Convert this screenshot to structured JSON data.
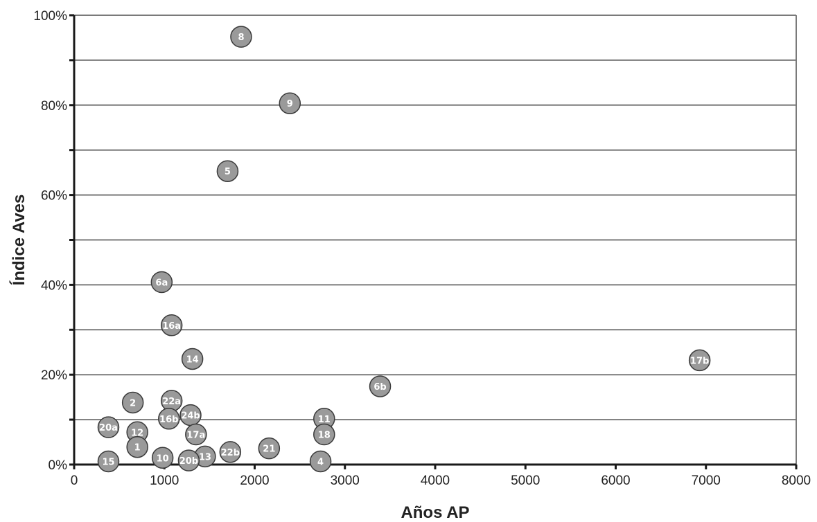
{
  "chart_data": {
    "type": "scatter",
    "title": "",
    "xlabel": "Años AP",
    "ylabel": "Índice Aves",
    "xlim": [
      0,
      8000
    ],
    "ylim": [
      0,
      100
    ],
    "x_ticks": [
      0,
      1000,
      2000,
      3000,
      4000,
      5000,
      6000,
      7000,
      8000
    ],
    "x_tick_labels": [
      "0",
      "1000",
      "2000",
      "3000",
      "4000",
      "5000",
      "6000",
      "7000",
      "8000"
    ],
    "y_ticks": [
      0,
      20,
      40,
      60,
      80,
      100
    ],
    "y_tick_labels": [
      "0%",
      "20%",
      "40%",
      "60%",
      "80%",
      "100%"
    ],
    "grid": true,
    "legend": "none",
    "marker_color": "#9a9a9a",
    "points": [
      {
        "label": "8",
        "x": 1850,
        "y": 95.2
      },
      {
        "label": "9",
        "x": 2390,
        "y": 80.4
      },
      {
        "label": "5",
        "x": 1700,
        "y": 65.3
      },
      {
        "label": "6a",
        "x": 970,
        "y": 40.6
      },
      {
        "label": "16a",
        "x": 1080,
        "y": 31.0
      },
      {
        "label": "14",
        "x": 1310,
        "y": 23.5
      },
      {
        "label": "17b",
        "x": 6930,
        "y": 23.2
      },
      {
        "label": "6b",
        "x": 3390,
        "y": 17.4
      },
      {
        "label": "2",
        "x": 650,
        "y": 13.8
      },
      {
        "label": "22a",
        "x": 1080,
        "y": 14.2
      },
      {
        "label": "24b",
        "x": 1290,
        "y": 11.0
      },
      {
        "label": "16b",
        "x": 1050,
        "y": 10.2
      },
      {
        "label": "11",
        "x": 2770,
        "y": 10.2
      },
      {
        "label": "20a",
        "x": 380,
        "y": 8.3
      },
      {
        "label": "12",
        "x": 700,
        "y": 7.2
      },
      {
        "label": "17a",
        "x": 1350,
        "y": 6.7
      },
      {
        "label": "18",
        "x": 2770,
        "y": 6.7
      },
      {
        "label": "1",
        "x": 700,
        "y": 3.9
      },
      {
        "label": "21",
        "x": 2160,
        "y": 3.6
      },
      {
        "label": "22b",
        "x": 1730,
        "y": 2.8
      },
      {
        "label": "13",
        "x": 1450,
        "y": 1.8
      },
      {
        "label": "10",
        "x": 980,
        "y": 1.5
      },
      {
        "label": "20b",
        "x": 1270,
        "y": 0.9
      },
      {
        "label": "15",
        "x": 380,
        "y": 0.7
      },
      {
        "label": "4",
        "x": 2730,
        "y": 0.7
      }
    ]
  }
}
